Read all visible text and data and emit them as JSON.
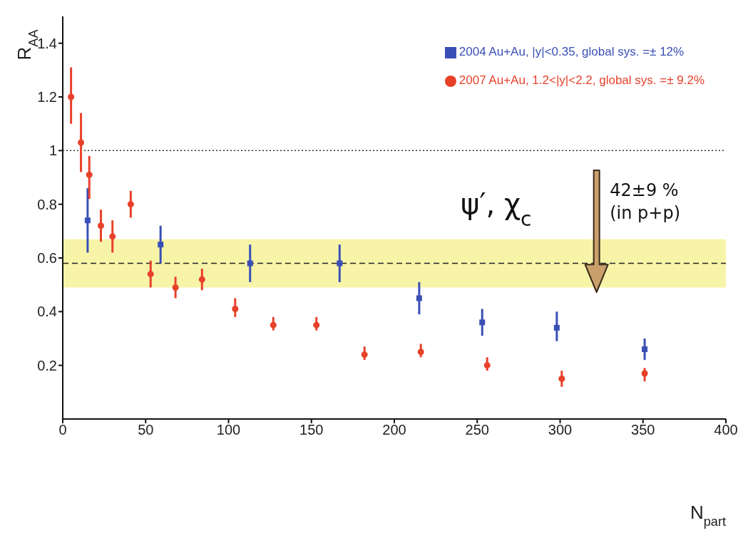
{
  "chart_data": {
    "type": "scatter",
    "xlabel": "N$_{part}$",
    "ylabel": "R$_{AA}$",
    "xlim": [
      0,
      400
    ],
    "xticks": [
      0,
      50,
      100,
      150,
      200,
      250,
      300,
      350,
      400
    ],
    "ylim": [
      0,
      1.5
    ],
    "yticks": [
      0.2,
      0.4,
      0.6,
      0.8,
      1,
      1.2,
      1.4
    ],
    "grid": false,
    "legend": "top right",
    "series": [
      {
        "name": "2004 Au+Au,   |y|<0.35,    global sys. =± 12%",
        "color": "#3a4fb5",
        "marker": "square",
        "x": [
          15,
          59,
          113,
          167,
          215,
          253,
          298,
          351
        ],
        "values": [
          0.74,
          0.65,
          0.58,
          0.58,
          0.45,
          0.36,
          0.34,
          0.26
        ],
        "errors": [
          [
            0.62,
            0.86
          ],
          [
            0.58,
            0.72
          ],
          [
            0.51,
            0.65
          ],
          [
            0.51,
            0.65
          ],
          [
            0.39,
            0.51
          ],
          [
            0.31,
            0.41
          ],
          [
            0.29,
            0.4
          ],
          [
            0.22,
            0.3
          ]
        ]
      },
      {
        "name": "2007 Au+Au,  1.2<|y|<2.2,  global sys. =± 9.2%",
        "color": "#e8412a",
        "marker": "circle",
        "x": [
          5,
          11,
          16,
          23,
          30,
          41,
          53,
          68,
          84,
          104,
          127,
          153,
          182,
          216,
          256,
          301,
          351
        ],
        "values": [
          1.2,
          1.03,
          0.91,
          0.72,
          0.68,
          0.8,
          0.54,
          0.49,
          0.52,
          0.41,
          0.35,
          0.35,
          0.24,
          0.25,
          0.2,
          0.15,
          0.17
        ],
        "errors": [
          [
            1.1,
            1.31
          ],
          [
            0.92,
            1.14
          ],
          [
            0.82,
            0.98
          ],
          [
            0.66,
            0.78
          ],
          [
            0.62,
            0.74
          ],
          [
            0.75,
            0.85
          ],
          [
            0.49,
            0.59
          ],
          [
            0.45,
            0.53
          ],
          [
            0.48,
            0.56
          ],
          [
            0.38,
            0.45
          ],
          [
            0.33,
            0.38
          ],
          [
            0.33,
            0.38
          ],
          [
            0.22,
            0.27
          ],
          [
            0.23,
            0.28
          ],
          [
            0.18,
            0.23
          ],
          [
            0.12,
            0.18
          ],
          [
            0.14,
            0.19
          ]
        ]
      }
    ],
    "ref_lines": [
      {
        "axis": "y",
        "value": 1,
        "line_style": "dotted",
        "color": "#333333"
      },
      {
        "axis": "y",
        "value": 0.58,
        "line_style": "dashed",
        "color": "#222222"
      }
    ],
    "bands": [
      {
        "axis": "y",
        "from": 0.49,
        "to": 0.67,
        "color": "#f7f4a8"
      }
    ],
    "annotations": [
      "ψ′, χ$_{c}$",
      "42±9 %",
      "(in p+p)"
    ]
  }
}
